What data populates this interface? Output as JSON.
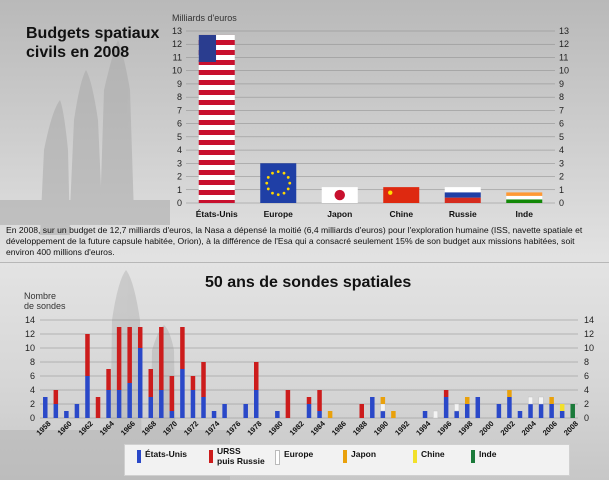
{
  "chart_data": [
    {
      "type": "bar",
      "title": "Budgets spatiaux civils en 2008",
      "ylabel": "Milliards d'euros",
      "ylim": [
        0,
        13
      ],
      "yticks": [
        0,
        1,
        2,
        3,
        4,
        5,
        6,
        7,
        8,
        9,
        10,
        11,
        12,
        13
      ],
      "categories": [
        "États-Unis",
        "Europe",
        "Japon",
        "Chine",
        "Russie",
        "Inde"
      ],
      "values": [
        12.7,
        3,
        1.2,
        1.2,
        1.2,
        0.8
      ],
      "flags": [
        "us-flag-icon",
        "eu-flag-icon",
        "japan-flag-icon",
        "china-flag-icon",
        "russia-flag-icon",
        "india-flag-icon"
      ]
    },
    {
      "type": "bar",
      "stacked": true,
      "title": "50 ans de sondes spatiales",
      "ylabel": "Nombre de sondes",
      "ylim": [
        0,
        14
      ],
      "yticks": [
        0,
        2,
        4,
        6,
        8,
        10,
        12,
        14
      ],
      "x": [
        1958,
        1959,
        1960,
        1961,
        1962,
        1963,
        1964,
        1965,
        1966,
        1967,
        1968,
        1969,
        1970,
        1971,
        1972,
        1973,
        1974,
        1975,
        1976,
        1977,
        1978,
        1979,
        1980,
        1981,
        1982,
        1983,
        1984,
        1985,
        1986,
        1987,
        1988,
        1989,
        1990,
        1991,
        1992,
        1993,
        1994,
        1995,
        1996,
        1997,
        1998,
        1999,
        2000,
        2001,
        2002,
        2003,
        2004,
        2005,
        2006,
        2007,
        2008
      ],
      "xticks": [
        1958,
        1960,
        1962,
        1964,
        1966,
        1968,
        1970,
        1972,
        1974,
        1976,
        1978,
        1980,
        1982,
        1984,
        1986,
        1988,
        1990,
        1992,
        1994,
        1996,
        1998,
        2000,
        2002,
        2004,
        2006,
        2008
      ],
      "series": [
        {
          "name": "États-Unis",
          "color": "#2a48c8",
          "values": [
            3,
            2,
            1,
            2,
            6,
            0,
            4,
            4,
            5,
            10,
            3,
            4,
            1,
            7,
            4,
            3,
            1,
            2,
            0,
            2,
            4,
            0,
            1,
            0,
            0,
            2,
            1,
            0,
            0,
            0,
            0,
            3,
            1,
            0,
            0,
            0,
            1,
            0,
            3,
            1,
            2,
            3,
            0,
            2,
            3,
            1,
            2,
            2,
            2,
            1,
            0
          ]
        },
        {
          "name": "URSS puis Russie",
          "color": "#cc1c1c",
          "values": [
            0,
            2,
            0,
            0,
            6,
            3,
            3,
            9,
            8,
            3,
            4,
            9,
            5,
            6,
            2,
            5,
            0,
            0,
            0,
            0,
            4,
            0,
            0,
            4,
            0,
            1,
            3,
            0,
            0,
            0,
            2,
            0,
            0,
            0,
            0,
            0,
            0,
            0,
            1,
            0,
            0,
            0,
            0,
            0,
            0,
            0,
            0,
            0,
            0,
            0,
            0
          ]
        },
        {
          "name": "Europe",
          "color": "#f4f4f4",
          "values": [
            0,
            0,
            0,
            0,
            0,
            0,
            0,
            0,
            0,
            0,
            0,
            0,
            0,
            0,
            0,
            0,
            0,
            0,
            0,
            0,
            0,
            0,
            0,
            0,
            0,
            0,
            0,
            0,
            0,
            0,
            0,
            0,
            1,
            0,
            0,
            0,
            0,
            1,
            0,
            1,
            0,
            0,
            0,
            0,
            0,
            0,
            1,
            1,
            0,
            0,
            0
          ]
        },
        {
          "name": "Japon",
          "color": "#e9a10c",
          "values": [
            0,
            0,
            0,
            0,
            0,
            0,
            0,
            0,
            0,
            0,
            0,
            0,
            0,
            0,
            0,
            0,
            0,
            0,
            0,
            0,
            0,
            0,
            0,
            0,
            0,
            0,
            0,
            1,
            0,
            0,
            0,
            0,
            1,
            1,
            0,
            0,
            0,
            0,
            0,
            0,
            1,
            0,
            0,
            0,
            1,
            0,
            0,
            0,
            1,
            0,
            0
          ]
        },
        {
          "name": "Chine",
          "color": "#f2e02a",
          "values": [
            0,
            0,
            0,
            0,
            0,
            0,
            0,
            0,
            0,
            0,
            0,
            0,
            0,
            0,
            0,
            0,
            0,
            0,
            0,
            0,
            0,
            0,
            0,
            0,
            0,
            0,
            0,
            0,
            0,
            0,
            0,
            0,
            0,
            0,
            0,
            0,
            0,
            0,
            0,
            0,
            0,
            0,
            0,
            0,
            0,
            0,
            0,
            0,
            0,
            1,
            0
          ]
        },
        {
          "name": "Inde",
          "color": "#1b7a3a",
          "values": [
            0,
            0,
            0,
            0,
            0,
            0,
            0,
            0,
            0,
            0,
            0,
            0,
            0,
            0,
            0,
            0,
            0,
            0,
            0,
            0,
            0,
            0,
            0,
            0,
            0,
            0,
            0,
            0,
            0,
            0,
            0,
            0,
            0,
            0,
            0,
            0,
            0,
            0,
            0,
            0,
            0,
            0,
            0,
            0,
            0,
            0,
            0,
            0,
            0,
            0,
            2
          ]
        }
      ]
    }
  ],
  "text": {
    "title_line1": "Budgets spatiaux",
    "title_line2": "civils en 2008",
    "caption": "En 2008, sur un budget de 12,7 milliards d'euros, la Nasa a dépensé la moitié (6,4 milliards d'euros) pour l'exploration humaine (ISS, navette spatiale et développement de la future capsule habitée, Orion), à la différence de l'Esa qui a consacré seulement 15% de son budget aux missions habitées, soit environ 400 millions d'euros.",
    "title2": "50 ans de sondes spatiales",
    "ylabel1": "Milliards d'euros",
    "ylabel2_line1": "Nombre",
    "ylabel2_line2": "de sondes",
    "legend": [
      "États-Unis",
      "URSS",
      "puis Russie",
      "Europe",
      "Japon",
      "Chine",
      "Inde"
    ]
  }
}
